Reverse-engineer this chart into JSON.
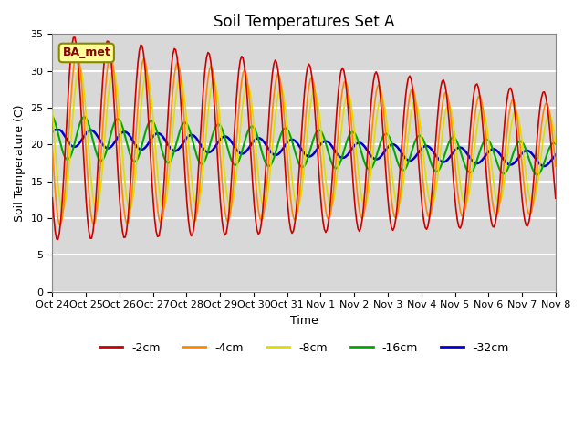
{
  "title": "Soil Temperatures Set A",
  "xlabel": "Time",
  "ylabel": "Soil Temperature (C)",
  "ylim": [
    0,
    35
  ],
  "tick_labels": [
    "Oct 24",
    "Oct 25",
    "Oct 26",
    "Oct 27",
    "Oct 28",
    "Oct 29",
    "Oct 30",
    "Oct 31",
    "Nov 1",
    "Nov 2",
    "Nov 3",
    "Nov 4",
    "Nov 5",
    "Nov 6",
    "Nov 7",
    "Nov 8"
  ],
  "legend_labels": [
    "-2cm",
    "-4cm",
    "-8cm",
    "-16cm",
    "-32cm"
  ],
  "legend_colors": [
    "#cc0000",
    "#ff8800",
    "#dddd00",
    "#00aa00",
    "#0000cc"
  ],
  "line_widths": [
    1.2,
    1.2,
    1.2,
    1.5,
    1.8
  ],
  "fig_bg_color": "#ffffff",
  "plot_bg_color": "#d8d8d8",
  "annotation_text": "BA_met",
  "annotation_bg": "#ffff99",
  "annotation_border": "#888800",
  "grid_color": "#ffffff",
  "title_fontsize": 12,
  "label_fontsize": 9,
  "tick_fontsize": 8
}
